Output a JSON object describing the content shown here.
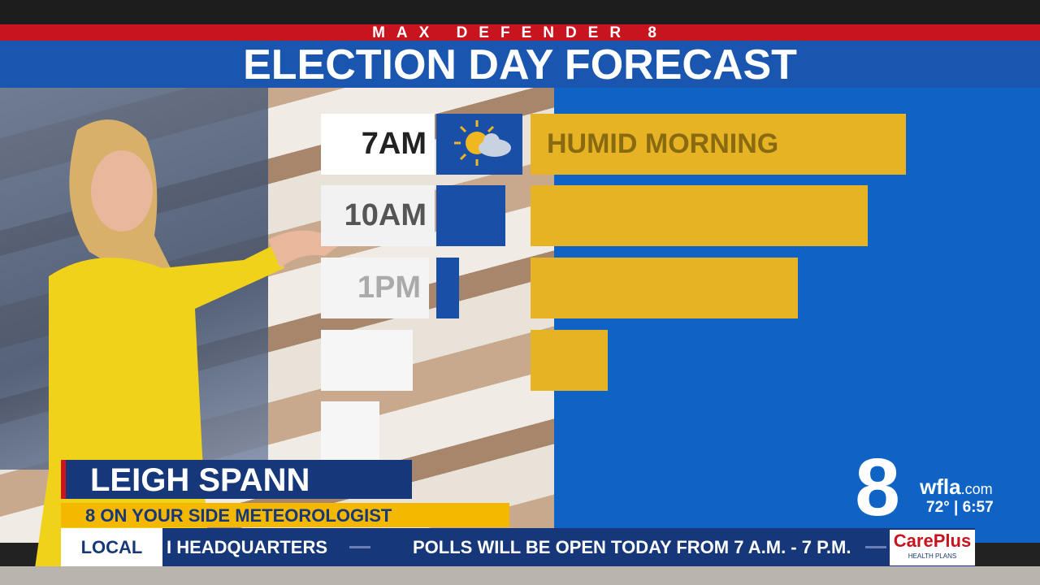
{
  "header": {
    "super": "MAX DEFENDER 8",
    "title": "ELECTION DAY FORECAST"
  },
  "forecast": {
    "rows": [
      {
        "time": "7AM",
        "label": "HUMID MORNING"
      },
      {
        "time": "10AM"
      },
      {
        "time": "1PM"
      }
    ]
  },
  "lower_third": {
    "name": "LEIGH SPANN",
    "role": "8 ON YOUR SIDE METEOROLOGIST"
  },
  "ticker": {
    "section": "LOCAL",
    "items": [
      "I HEADQUARTERS",
      "POLLS WILL BE OPEN TODAY FROM 7 A.M. - 7 P.M."
    ],
    "sponsor": "CarePlus",
    "sponsor_sub": "HEALTH PLANS"
  },
  "station": {
    "number": "8",
    "name": "wfla",
    "domain": ".com",
    "temperature": "72°",
    "time": "6:57"
  }
}
